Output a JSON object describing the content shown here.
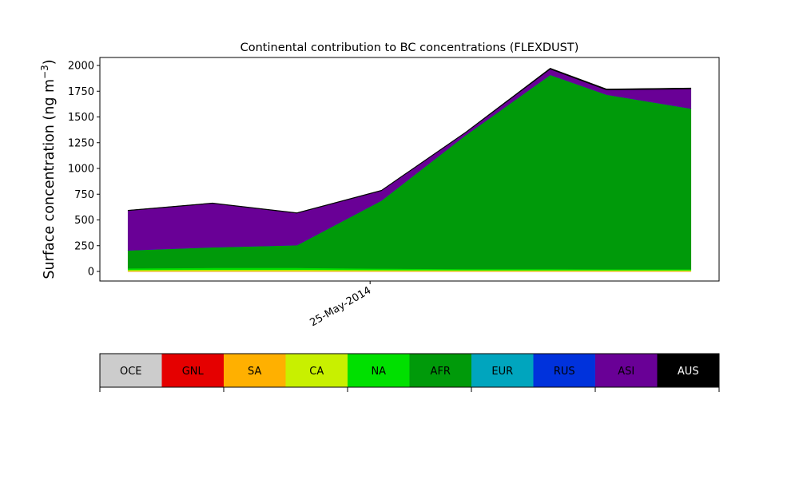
{
  "chart_data": {
    "type": "area",
    "title": "Continental contribution to BC concentrations (FLEXDUST)",
    "ylabel_main": "Surface concentration (ng m",
    "ylabel_sup": "−3",
    "ylabel_close": ")",
    "xlabel": "",
    "ylim": [
      -100,
      2060
    ],
    "yticks": [
      0,
      250,
      500,
      750,
      1000,
      1250,
      1500,
      1750,
      2000
    ],
    "xlim": [
      -1,
      21
    ],
    "x": [
      0,
      3,
      6,
      9,
      12,
      15,
      17,
      20
    ],
    "xtick_positions": [
      8.6
    ],
    "xtick_labels": [
      "25-May-2014"
    ],
    "series": [
      {
        "name": "OCE",
        "color": "#cccccc",
        "values": [
          0,
          0,
          0,
          0,
          0,
          0,
          0,
          0
        ]
      },
      {
        "name": "GNL",
        "color": "#e50000",
        "values": [
          0,
          0,
          0,
          0,
          0,
          0,
          0,
          0
        ]
      },
      {
        "name": "SA",
        "color": "#ffb000",
        "values": [
          5,
          5,
          5,
          4,
          4,
          4,
          4,
          4
        ]
      },
      {
        "name": "CA",
        "color": "#c8f000",
        "values": [
          10,
          12,
          12,
          10,
          8,
          8,
          8,
          8
        ]
      },
      {
        "name": "NA",
        "color": "#00e000",
        "values": [
          15,
          18,
          18,
          14,
          12,
          12,
          10,
          10
        ]
      },
      {
        "name": "AFR",
        "color": "#009a0a",
        "values": [
          175,
          200,
          220,
          660,
          1300,
          1885,
          1695,
          1560
        ]
      },
      {
        "name": "EUR",
        "color": "#00a5be",
        "values": [
          0,
          0,
          0,
          0,
          0,
          0,
          0,
          0
        ]
      },
      {
        "name": "RUS",
        "color": "#0032dc",
        "values": [
          0,
          0,
          0,
          0,
          0,
          0,
          0,
          0
        ]
      },
      {
        "name": "ASI",
        "color": "#690096",
        "values": [
          385,
          425,
          310,
          95,
          25,
          55,
          45,
          190
        ]
      },
      {
        "name": "AUS",
        "color": "#000000",
        "values": [
          5,
          5,
          5,
          5,
          5,
          10,
          10,
          10
        ]
      }
    ],
    "legend_placement": "below",
    "grid": false
  }
}
